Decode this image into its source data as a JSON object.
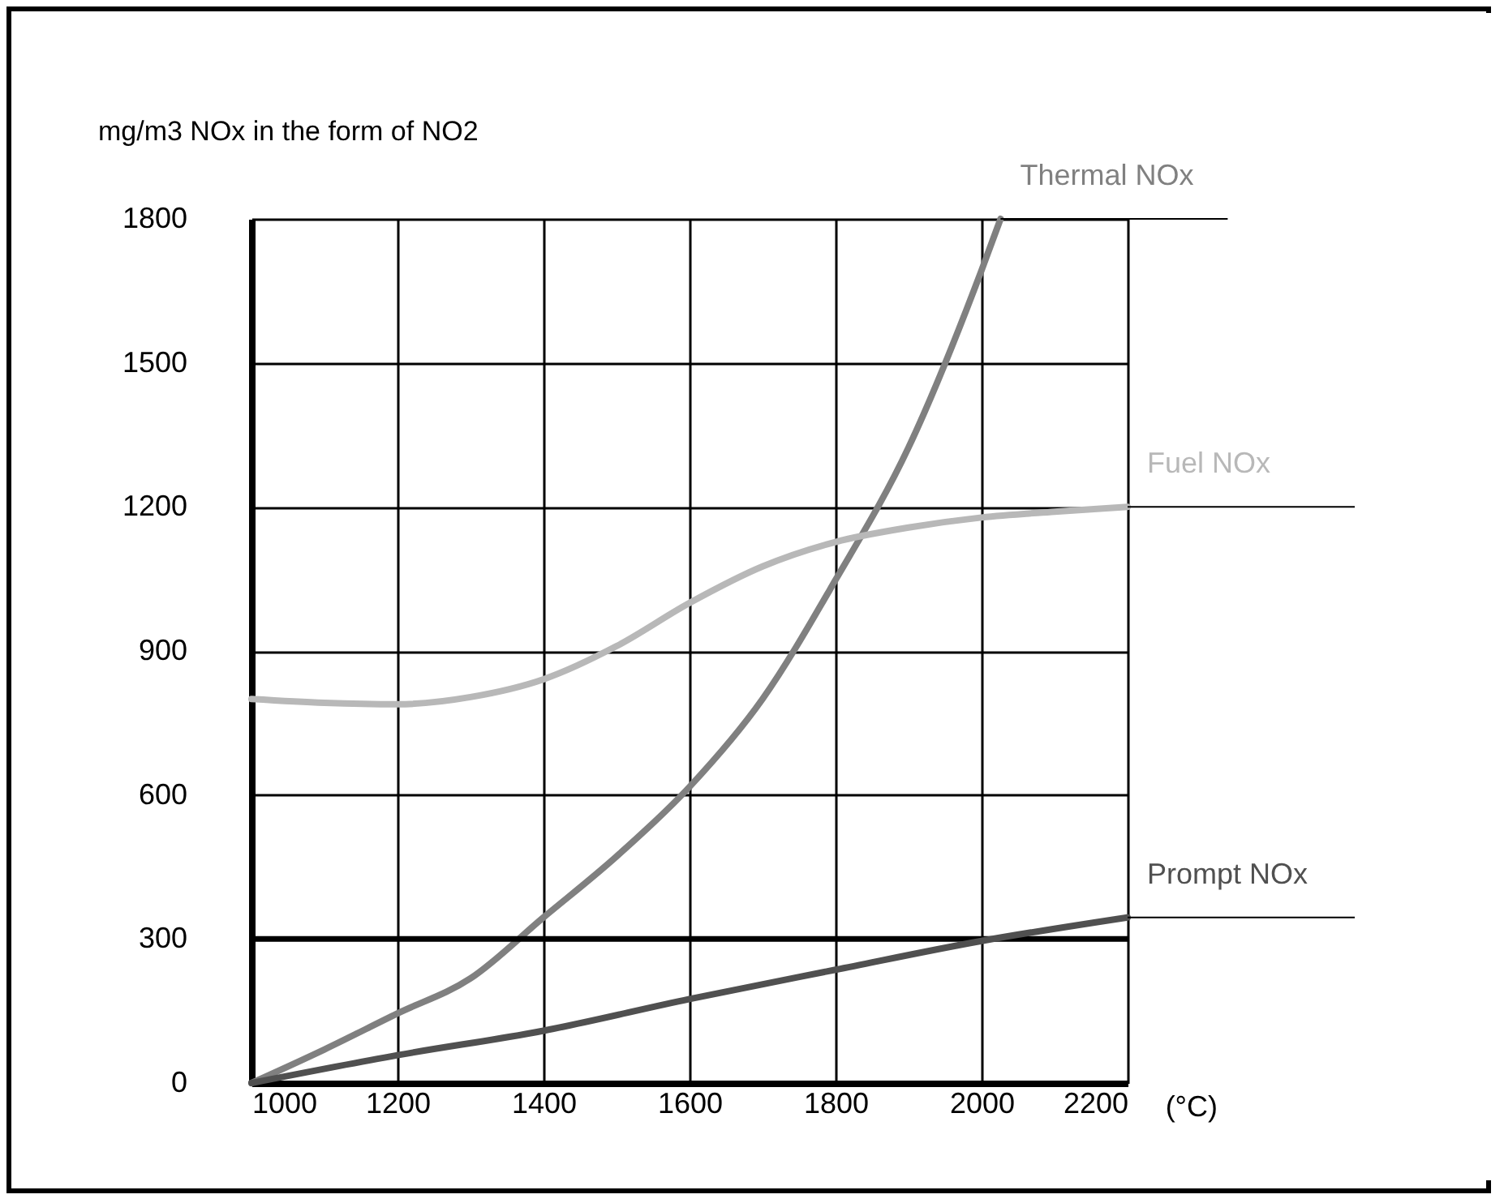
{
  "chart_data": {
    "type": "line",
    "ylabel": "mg/m3 NOx in the form of NO2",
    "xlabel": "(°C)",
    "xlim": [
      1000,
      2200
    ],
    "xticks": [
      1000,
      1200,
      1400,
      1600,
      1800,
      2000,
      2200
    ],
    "ylim": [
      0,
      1800
    ],
    "yticks": [
      0,
      300,
      600,
      900,
      1200,
      1500,
      1800
    ],
    "grid": true,
    "legend": false,
    "marker": "none",
    "line_style": "solid",
    "ref_lines": [
      {
        "axis": "y",
        "value": 300,
        "color": "#000000",
        "line_style": "solid"
      }
    ],
    "series": [
      {
        "name": "Thermal NOx",
        "color": "#808080",
        "x": [
          1000,
          1100,
          1200,
          1300,
          1400,
          1500,
          1600,
          1700,
          1800,
          1900,
          2000,
          2026
        ],
        "values": [
          0,
          70,
          145,
          218,
          345,
          472,
          617,
          800,
          1048,
          1324,
          1693,
          1800
        ]
      },
      {
        "name": "Fuel NOx",
        "color": "#b8b8b8",
        "x": [
          1000,
          1100,
          1200,
          1300,
          1400,
          1500,
          1600,
          1700,
          1800,
          1900,
          2000,
          2100,
          2200
        ],
        "values": [
          800,
          792,
          789,
          804,
          841,
          910,
          1000,
          1076,
          1127,
          1157,
          1178,
          1190,
          1200
        ]
      },
      {
        "name": "Prompt NOx",
        "color": "#505050",
        "x": [
          1000,
          1200,
          1400,
          1600,
          1800,
          2000,
          2200
        ],
        "values": [
          0,
          58,
          109,
          175,
          236,
          296,
          345
        ]
      }
    ]
  }
}
